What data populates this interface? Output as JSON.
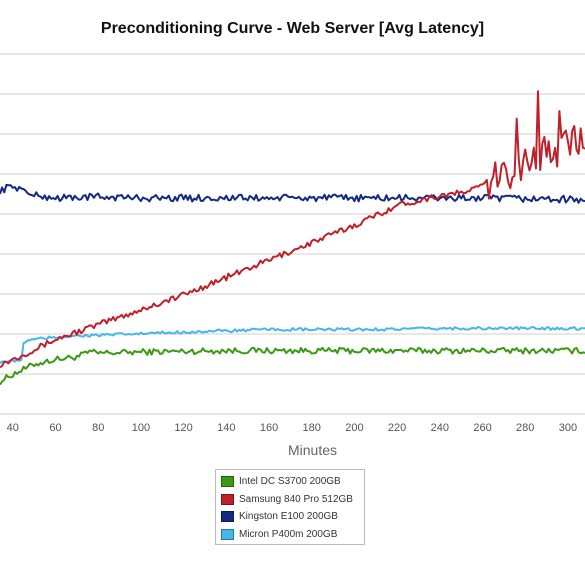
{
  "title": "Preconditioning Curve - Web Server [Avg Latency]",
  "chart_data": {
    "type": "line",
    "title": "Preconditioning Curve - Web Server [Avg Latency]",
    "xlabel": "Minutes",
    "ylabel": "",
    "x_ticks": [
      "40",
      "60",
      "80",
      "100",
      "120",
      "140",
      "160",
      "180",
      "200",
      "220",
      "240",
      "260",
      "280",
      "300"
    ],
    "xlim": [
      34,
      308
    ],
    "grid": "horizontal",
    "legend_position": "bottom-center",
    "series": [
      {
        "name": "Intel DC S3700 200GB",
        "color": "#3a9a14",
        "points": [
          [
            34,
            0.13
          ],
          [
            40,
            0.16
          ],
          [
            50,
            0.2
          ],
          [
            60,
            0.22
          ],
          [
            70,
            0.23
          ],
          [
            76,
            0.25
          ],
          [
            80,
            0.245
          ],
          [
            100,
            0.25
          ],
          [
            140,
            0.255
          ],
          [
            200,
            0.255
          ],
          [
            260,
            0.255
          ],
          [
            308,
            0.255
          ]
        ],
        "noise": 0.012
      },
      {
        "name": "Samsung 840 Pro 512GB",
        "color": "#c0202a",
        "points": [
          [
            34,
            0.2
          ],
          [
            40,
            0.22
          ],
          [
            50,
            0.26
          ],
          [
            60,
            0.3
          ],
          [
            70,
            0.33
          ],
          [
            80,
            0.36
          ],
          [
            100,
            0.42
          ],
          [
            120,
            0.48
          ],
          [
            140,
            0.55
          ],
          [
            160,
            0.62
          ],
          [
            180,
            0.69
          ],
          [
            200,
            0.76
          ],
          [
            210,
            0.8
          ],
          [
            220,
            0.84
          ],
          [
            240,
            0.88
          ],
          [
            250,
            0.89
          ],
          [
            260,
            0.92
          ],
          [
            270,
            0.96
          ],
          [
            280,
            1.02
          ],
          [
            290,
            1.05
          ],
          [
            300,
            1.08
          ],
          [
            308,
            1.1
          ]
        ],
        "noise": 0.012,
        "noise_extra": {
          "from": 262,
          "amp": 0.07
        },
        "spikes": [
          [
            276,
            1.19
          ],
          [
            286,
            1.3
          ],
          [
            296,
            1.22
          ],
          [
            303,
            1.16
          ]
        ]
      },
      {
        "name": "Kingston E100 200GB",
        "color": "#142a82",
        "points": [
          [
            34,
            0.9
          ],
          [
            40,
            0.92
          ],
          [
            50,
            0.88
          ],
          [
            60,
            0.87
          ],
          [
            80,
            0.875
          ],
          [
            100,
            0.87
          ],
          [
            150,
            0.87
          ],
          [
            200,
            0.87
          ],
          [
            250,
            0.87
          ],
          [
            300,
            0.865
          ],
          [
            308,
            0.86
          ]
        ],
        "noise": 0.014
      },
      {
        "name": "Micron P400m 200GB",
        "color": "#45b6ea",
        "points": [
          [
            34,
            0.21
          ],
          [
            44,
            0.215
          ],
          [
            45,
            0.29
          ],
          [
            50,
            0.3
          ],
          [
            60,
            0.31
          ],
          [
            70,
            0.315
          ],
          [
            90,
            0.32
          ],
          [
            120,
            0.33
          ],
          [
            140,
            0.335
          ],
          [
            160,
            0.34
          ],
          [
            200,
            0.34
          ],
          [
            250,
            0.345
          ],
          [
            308,
            0.345
          ]
        ],
        "noise": 0.006
      }
    ]
  },
  "legend": {
    "items": [
      {
        "label": "Intel DC S3700 200GB",
        "color": "#3a9a14"
      },
      {
        "label": "Samsung 840 Pro 512GB",
        "color": "#c0202a"
      },
      {
        "label": "Kingston E100 200GB",
        "color": "#142a82"
      },
      {
        "label": "Micron P400m 200GB",
        "color": "#45b6ea"
      }
    ]
  }
}
